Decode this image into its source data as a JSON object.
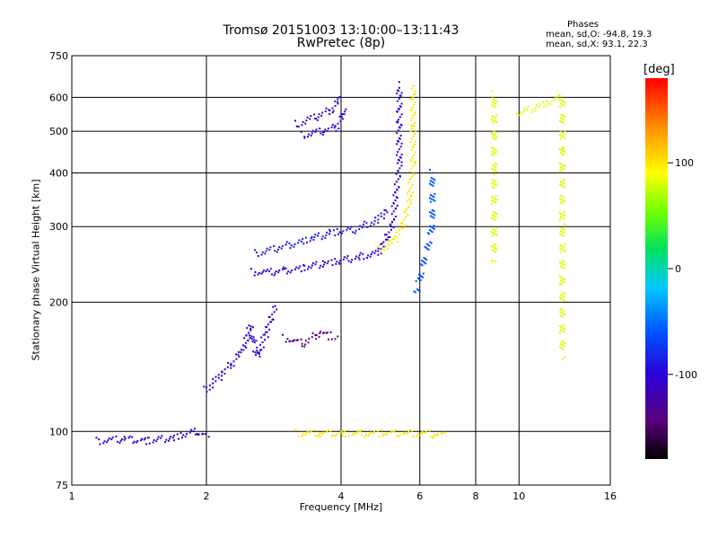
{
  "header": {
    "title": "Tromsø 20151003 13:10:00–13:11:43",
    "subtitle": "RwPretec (8p)"
  },
  "phases_box": {
    "title": "Phases",
    "line1": "mean, sd,O: -94.8, 19.3",
    "line2": "mean, sd,X:  93.1, 22.3"
  },
  "colorbar": {
    "unit": "deg",
    "ticks": [
      "100",
      "0",
      "-100"
    ],
    "tick_values": [
      100,
      0,
      -100
    ],
    "range": [
      -180,
      180
    ],
    "colormap": "rainbow (black→violet→blue→cyan→green→yellow→red)"
  },
  "chart_data": {
    "type": "scatter",
    "xlabel": "Frequency [MHz]",
    "ylabel": "Stationary phase Virtual Height [km]",
    "xscale": "log",
    "yscale": "log",
    "xlim": [
      1,
      16
    ],
    "ylim": [
      75,
      750
    ],
    "xticks": [
      1,
      2,
      4,
      6,
      8,
      10,
      16
    ],
    "xtick_labels": [
      "1",
      "2",
      "4",
      "6",
      "8",
      "10",
      "16"
    ],
    "yticks": [
      75,
      100,
      200,
      300,
      400,
      500,
      600,
      750
    ],
    "ytick_labels": [
      "75",
      "100",
      "200",
      "300",
      "400",
      "500",
      "600",
      "750"
    ],
    "grid": true,
    "traces": [
      {
        "points": [
          [
            1.15,
            95
          ],
          [
            1.3,
            96
          ],
          [
            1.5,
            95
          ],
          [
            1.7,
            97
          ],
          [
            1.9,
            100
          ],
          [
            2.0,
            98
          ]
        ],
        "phase": -100
      },
      {
        "points": [
          [
            2.0,
            125
          ],
          [
            2.15,
            135
          ],
          [
            2.3,
            145
          ],
          [
            2.45,
            160
          ],
          [
            2.5,
            175
          ],
          [
            2.6,
            150
          ],
          [
            2.75,
            175
          ],
          [
            2.85,
            195
          ]
        ],
        "phase": -100
      },
      {
        "points": [
          [
            2.55,
            235
          ],
          [
            2.8,
            235
          ],
          [
            3.0,
            237
          ],
          [
            3.3,
            240
          ],
          [
            3.6,
            245
          ],
          [
            4.0,
            250
          ],
          [
            4.4,
            255
          ],
          [
            4.8,
            260
          ],
          [
            5.0,
            275
          ],
          [
            5.2,
            300
          ],
          [
            5.3,
            350
          ],
          [
            5.4,
            420
          ],
          [
            5.4,
            520
          ],
          [
            5.4,
            640
          ]
        ],
        "phase": -100
      },
      {
        "points": [
          [
            2.6,
            260
          ],
          [
            3.0,
            270
          ],
          [
            3.4,
            280
          ],
          [
            3.8,
            290
          ],
          [
            4.3,
            295
          ],
          [
            4.8,
            310
          ],
          [
            5.1,
            330
          ]
        ],
        "phase": -90
      },
      {
        "points": [
          [
            3.3,
            490
          ],
          [
            3.6,
            500
          ],
          [
            3.9,
            510
          ],
          [
            4.1,
            560
          ]
        ],
        "phase": -100
      },
      {
        "points": [
          [
            3.2,
            520
          ],
          [
            3.5,
            540
          ],
          [
            3.8,
            560
          ],
          [
            4.0,
            600
          ]
        ],
        "phase": -110
      },
      {
        "points": [
          [
            4.9,
            265
          ],
          [
            5.2,
            275
          ],
          [
            5.5,
            300
          ],
          [
            5.7,
            350
          ],
          [
            5.8,
            430
          ],
          [
            5.8,
            520
          ],
          [
            5.8,
            640
          ]
        ],
        "phase": 100
      },
      {
        "points": [
          [
            3.0,
            165
          ],
          [
            3.3,
            160
          ],
          [
            3.6,
            170
          ],
          [
            3.9,
            165
          ]
        ],
        "phase": -140
      },
      {
        "points": [
          [
            3.2,
            99
          ],
          [
            3.6,
            99
          ],
          [
            4.0,
            99
          ],
          [
            4.5,
            99
          ],
          [
            5.0,
            99
          ],
          [
            5.5,
            99
          ],
          [
            6.0,
            99
          ],
          [
            6.8,
            98
          ]
        ],
        "phase": 100
      },
      {
        "points": [
          [
            8.8,
            610
          ],
          [
            8.8,
            400
          ],
          [
            8.8,
            250
          ],
          [
            10.0,
            550
          ],
          [
            12.5,
            600
          ],
          [
            12.5,
            450
          ],
          [
            12.5,
            300
          ],
          [
            12.5,
            200
          ],
          [
            12.5,
            150
          ]
        ],
        "phase": 80
      },
      {
        "points": [
          [
            6.4,
            400
          ],
          [
            6.4,
            300
          ],
          [
            5.9,
            210
          ]
        ],
        "phase": -60
      }
    ]
  }
}
